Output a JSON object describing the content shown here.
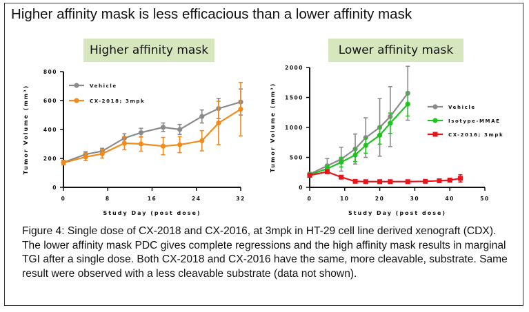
{
  "headline": "Higher affinity mask is less efficacious than a lower affinity mask",
  "caption": "Figure 4: Single dose of CX-2018 and CX-2016, at 3mpk in HT-29 cell line derived xenograft (CDX). The lower affinity mask PDC gives complete regressions and the high affinity mask results in  marginal TGI after a single dose. Both CX-2018 and CX-2016 have the same, more cleavable, substrate. Same result were observed with a less cleavable substrate (data not shown).",
  "colors": {
    "vehicle": "#8a8a8a",
    "cx2018": "#f28a1c",
    "isotype": "#1fc21f",
    "cx2016": "#e8141a",
    "panel_title_bg": "#d6e6bd"
  },
  "chart_data": [
    {
      "type": "line",
      "title": "Higher affinity mask",
      "xlabel": "Study Day (post dose)",
      "ylabel": "Tumor Volume (mm³)",
      "xlim": [
        0,
        32
      ],
      "ylim": [
        0,
        800
      ],
      "xticks": [
        "0",
        "8",
        "16",
        "24",
        "32"
      ],
      "yticks": [
        "0",
        "200",
        "400",
        "600",
        "800"
      ],
      "legend_position": "top-left",
      "grid": false,
      "series": [
        {
          "name": "Vehicle",
          "color": "#8a8a8a",
          "marker": "circle",
          "x": [
            0,
            4,
            7,
            11,
            14,
            18,
            21,
            25,
            28,
            32
          ],
          "y": [
            172,
            228,
            250,
            340,
            378,
            415,
            400,
            490,
            545,
            590
          ],
          "err": [
            15,
            18,
            20,
            30,
            30,
            30,
            35,
            45,
            70,
            90
          ]
        },
        {
          "name": "CX-2018; 3mpk",
          "color": "#f28a1c",
          "marker": "circle",
          "x": [
            0,
            4,
            7,
            11,
            14,
            18,
            21,
            25,
            28,
            32
          ],
          "y": [
            170,
            210,
            232,
            305,
            300,
            285,
            295,
            322,
            445,
            540
          ],
          "err": [
            15,
            25,
            30,
            45,
            50,
            60,
            55,
            70,
            150,
            185
          ]
        }
      ]
    },
    {
      "type": "line",
      "title": "Lower affinity mask",
      "xlabel": "Study Day (post dose)",
      "ylabel": "Tumor Volume (mm³)",
      "xlim": [
        0,
        50
      ],
      "ylim": [
        0,
        2000
      ],
      "xticks": [
        "0",
        "10",
        "20",
        "30",
        "40",
        "50"
      ],
      "yticks": [
        "0",
        "500",
        "1000",
        "1500",
        "2000"
      ],
      "legend_position": "right",
      "grid": false,
      "series": [
        {
          "name": "Vehicle",
          "color": "#8a8a8a",
          "marker": "circle",
          "x": [
            0,
            5,
            9,
            13,
            16,
            20,
            23,
            28
          ],
          "y": [
            220,
            360,
            470,
            640,
            830,
            1000,
            1180,
            1570
          ],
          "err": [
            30,
            120,
            200,
            250,
            330,
            480,
            500,
            450
          ]
        },
        {
          "name": "Isotype-MMAE",
          "color": "#1fc21f",
          "marker": "circle",
          "x": [
            0,
            5,
            9,
            13,
            16,
            20,
            23,
            28
          ],
          "y": [
            210,
            310,
            420,
            540,
            700,
            870,
            1070,
            1390
          ],
          "err": [
            20,
            50,
            80,
            110,
            130,
            150,
            170,
            200
          ]
        },
        {
          "name": "CX-2016; 3mpk",
          "color": "#e8141a",
          "marker": "square",
          "x": [
            0,
            5,
            9,
            13,
            16,
            20,
            23,
            28,
            33,
            37,
            40,
            43
          ],
          "y": [
            200,
            260,
            170,
            100,
            95,
            95,
            95,
            95,
            100,
            110,
            120,
            150
          ],
          "err": [
            15,
            20,
            15,
            10,
            10,
            10,
            10,
            10,
            15,
            20,
            30,
            60
          ]
        }
      ]
    }
  ]
}
